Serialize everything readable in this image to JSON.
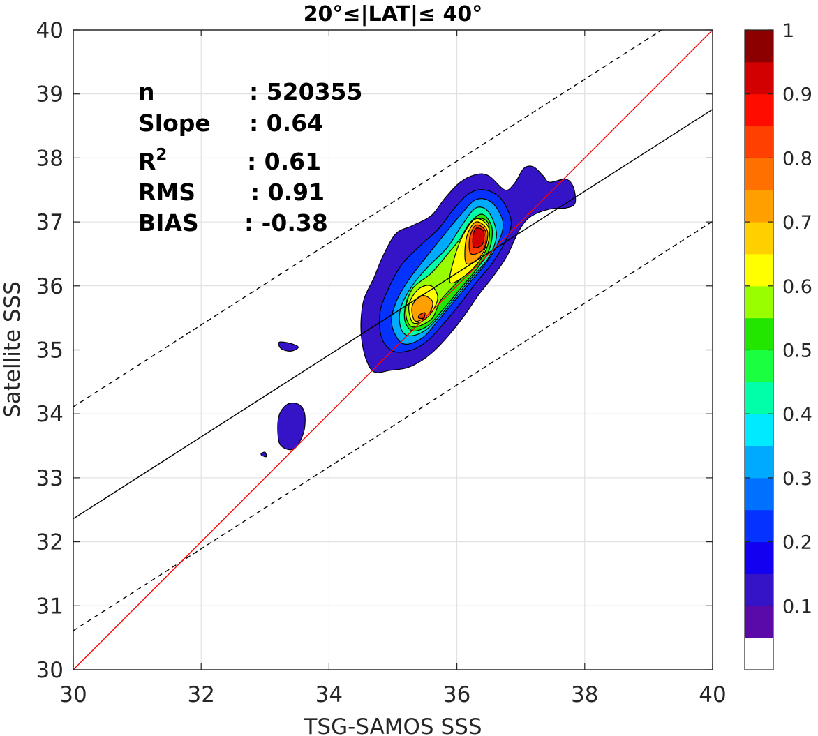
{
  "chart_data": {
    "type": "contour",
    "title": "20°≤|LAT|≤ 40°",
    "xlabel": "TSG-SAMOS SSS",
    "ylabel": "Satellite SSS",
    "xlim": [
      30,
      40
    ],
    "ylim": [
      30,
      40
    ],
    "xticks": [
      "30",
      "32",
      "34",
      "36",
      "38",
      "40"
    ],
    "yticks": [
      "30",
      "31",
      "32",
      "33",
      "34",
      "35",
      "36",
      "37",
      "38",
      "39",
      "40"
    ],
    "grid": true,
    "stats": [
      {
        "label": "n",
        "value": ": 520355"
      },
      {
        "label": "Slope",
        "value": ": 0.64"
      },
      {
        "label": "R",
        "sup": "2",
        "value": ": 0.61"
      },
      {
        "label": "RMS",
        "value": ": 0.91"
      },
      {
        "label": "BIAS",
        "value": ": -0.38"
      }
    ],
    "lines": {
      "one_to_one": {
        "slope": 1,
        "intercept": 0,
        "color": "#ff0000"
      },
      "regression": {
        "slope": 0.64,
        "intercept": 13.16,
        "color": "#000000"
      },
      "upper_bound": {
        "slope": 0.64,
        "intercept": 14.91,
        "color": "#000000",
        "style": "dashed"
      },
      "lower_bound": {
        "slope": 0.64,
        "intercept": 11.41,
        "color": "#000000",
        "style": "dashed"
      }
    },
    "colorbar": {
      "ticks": [
        "0.1",
        "0.2",
        "0.3",
        "0.4",
        "0.5",
        "0.6",
        "0.7",
        "0.8",
        "0.9",
        "1"
      ],
      "colors": [
        "#ffffff",
        "#5a0aa8",
        "#3514c8",
        "#1400f0",
        "#0532ff",
        "#0070ff",
        "#00aaff",
        "#00eaff",
        "#00ffa8",
        "#1aff40",
        "#22e600",
        "#99ff00",
        "#ffff00",
        "#ffd000",
        "#ffa000",
        "#ff7000",
        "#ff4000",
        "#ff0c00",
        "#d20000",
        "#8c0000"
      ]
    },
    "contours": [
      {
        "level": 0.05,
        "color": "#3514c8",
        "points": [
          [
            34.72,
            34.65
          ],
          [
            34.96,
            34.68
          ],
          [
            35.22,
            34.72
          ],
          [
            35.46,
            34.84
          ],
          [
            35.68,
            35.02
          ],
          [
            35.9,
            35.26
          ],
          [
            36.12,
            35.54
          ],
          [
            36.34,
            35.86
          ],
          [
            36.56,
            36.14
          ],
          [
            36.78,
            36.46
          ],
          [
            36.97,
            36.86
          ],
          [
            37.15,
            37.08
          ],
          [
            37.45,
            37.2
          ],
          [
            37.72,
            37.22
          ],
          [
            37.85,
            37.3
          ],
          [
            37.82,
            37.55
          ],
          [
            37.7,
            37.67
          ],
          [
            37.45,
            37.62
          ],
          [
            37.35,
            37.72
          ],
          [
            37.2,
            37.86
          ],
          [
            37.05,
            37.84
          ],
          [
            36.9,
            37.6
          ],
          [
            36.75,
            37.5
          ],
          [
            36.5,
            37.72
          ],
          [
            36.3,
            37.74
          ],
          [
            36.05,
            37.62
          ],
          [
            35.82,
            37.38
          ],
          [
            35.6,
            37.1
          ],
          [
            35.3,
            36.94
          ],
          [
            35.05,
            36.82
          ],
          [
            34.85,
            36.48
          ],
          [
            34.7,
            36.12
          ],
          [
            34.55,
            35.8
          ],
          [
            34.5,
            35.45
          ],
          [
            34.52,
            35.1
          ],
          [
            34.6,
            34.8
          ]
        ]
      },
      {
        "level": 0.15,
        "color": "#0532ff",
        "points": [
          [
            35.0,
            34.98
          ],
          [
            35.3,
            35.0
          ],
          [
            35.55,
            35.15
          ],
          [
            35.8,
            35.42
          ],
          [
            36.05,
            35.72
          ],
          [
            36.3,
            36.05
          ],
          [
            36.55,
            36.35
          ],
          [
            36.75,
            36.68
          ],
          [
            36.85,
            37.0
          ],
          [
            36.7,
            37.35
          ],
          [
            36.45,
            37.5
          ],
          [
            36.2,
            37.45
          ],
          [
            35.95,
            37.2
          ],
          [
            35.72,
            36.9
          ],
          [
            35.45,
            36.65
          ],
          [
            35.15,
            36.35
          ],
          [
            34.95,
            36.0
          ],
          [
            34.8,
            35.6
          ],
          [
            34.82,
            35.2
          ]
        ]
      },
      {
        "level": 0.25,
        "color": "#00aaff",
        "points": [
          [
            35.15,
            35.1
          ],
          [
            35.45,
            35.18
          ],
          [
            35.7,
            35.45
          ],
          [
            35.95,
            35.75
          ],
          [
            36.2,
            36.05
          ],
          [
            36.45,
            36.35
          ],
          [
            36.65,
            36.68
          ],
          [
            36.72,
            37.0
          ],
          [
            36.55,
            37.3
          ],
          [
            36.3,
            37.35
          ],
          [
            36.05,
            37.1
          ],
          [
            35.8,
            36.8
          ],
          [
            35.52,
            36.45
          ],
          [
            35.25,
            36.1
          ],
          [
            35.05,
            35.75
          ],
          [
            34.98,
            35.4
          ]
        ]
      },
      {
        "level": 0.35,
        "color": "#00ffa8",
        "points": [
          [
            35.25,
            35.22
          ],
          [
            35.5,
            35.3
          ],
          [
            35.75,
            35.55
          ],
          [
            36.0,
            35.85
          ],
          [
            36.25,
            36.15
          ],
          [
            36.5,
            36.45
          ],
          [
            36.62,
            36.8
          ],
          [
            36.5,
            37.15
          ],
          [
            36.3,
            37.22
          ],
          [
            36.08,
            36.95
          ],
          [
            35.85,
            36.6
          ],
          [
            35.55,
            36.3
          ],
          [
            35.3,
            36.0
          ],
          [
            35.12,
            35.65
          ],
          [
            35.12,
            35.35
          ]
        ]
      },
      {
        "level": 0.45,
        "color": "#22e600",
        "points": [
          [
            35.3,
            35.3
          ],
          [
            35.55,
            35.38
          ],
          [
            35.8,
            35.65
          ],
          [
            36.05,
            35.95
          ],
          [
            36.3,
            36.25
          ],
          [
            36.5,
            36.55
          ],
          [
            36.55,
            36.9
          ],
          [
            36.4,
            37.12
          ],
          [
            36.2,
            36.98
          ],
          [
            36.0,
            36.65
          ],
          [
            35.75,
            36.35
          ],
          [
            35.5,
            36.1
          ],
          [
            35.25,
            35.85
          ],
          [
            35.18,
            35.5
          ]
        ]
      },
      {
        "level": 0.55,
        "color": "#99ff00",
        "points": [
          [
            35.3,
            35.36
          ],
          [
            35.6,
            35.48
          ],
          [
            35.75,
            35.78
          ],
          [
            36.0,
            36.05
          ],
          [
            36.25,
            36.3
          ],
          [
            36.45,
            36.6
          ],
          [
            36.5,
            36.95
          ],
          [
            36.35,
            37.05
          ],
          [
            36.15,
            36.85
          ],
          [
            35.9,
            36.55
          ],
          [
            35.6,
            36.2
          ],
          [
            35.3,
            35.95
          ],
          [
            35.2,
            35.6
          ]
        ]
      },
      {
        "level": 0.65,
        "color": "#ffff00",
        "points": [
          [
            35.32,
            35.42
          ],
          [
            35.55,
            35.52
          ],
          [
            35.7,
            35.8
          ],
          [
            35.6,
            36.0
          ],
          [
            35.4,
            35.95
          ],
          [
            35.25,
            35.7
          ]
        ]
      },
      {
        "level": 0.65,
        "color": "#ffff00",
        "points": [
          [
            35.9,
            36.05
          ],
          [
            36.2,
            36.22
          ],
          [
            36.45,
            36.55
          ],
          [
            36.5,
            36.9
          ],
          [
            36.3,
            37.05
          ],
          [
            36.1,
            36.8
          ],
          [
            35.95,
            36.4
          ]
        ]
      },
      {
        "level": 0.75,
        "color": "#ffa000",
        "points": [
          [
            35.35,
            35.45
          ],
          [
            35.55,
            35.55
          ],
          [
            35.62,
            35.75
          ],
          [
            35.45,
            35.85
          ],
          [
            35.3,
            35.68
          ]
        ]
      },
      {
        "level": 0.75,
        "color": "#ffa000",
        "points": [
          [
            36.15,
            36.35
          ],
          [
            36.4,
            36.5
          ],
          [
            36.48,
            36.85
          ],
          [
            36.3,
            37.0
          ],
          [
            36.15,
            36.75
          ]
        ]
      },
      {
        "level": 0.85,
        "color": "#ff4000",
        "points": [
          [
            36.22,
            36.5
          ],
          [
            36.42,
            36.58
          ],
          [
            36.45,
            36.85
          ],
          [
            36.3,
            36.95
          ],
          [
            36.2,
            36.75
          ]
        ]
      },
      {
        "level": 0.95,
        "color": "#d20000",
        "points": [
          [
            36.27,
            36.6
          ],
          [
            36.4,
            36.65
          ],
          [
            36.42,
            36.85
          ],
          [
            36.3,
            36.9
          ],
          [
            36.25,
            36.75
          ]
        ]
      },
      {
        "level": 0.85,
        "color": "#ff4000",
        "points": [
          [
            35.42,
            35.55
          ],
          [
            35.5,
            35.58
          ],
          [
            35.48,
            35.5
          ],
          [
            35.4,
            35.5
          ]
        ]
      },
      {
        "level": 0.05,
        "color": "#3514c8",
        "points": [
          [
            33.22,
            35.12
          ],
          [
            33.4,
            35.1
          ],
          [
            33.52,
            35.04
          ],
          [
            33.4,
            34.98
          ],
          [
            33.25,
            35.02
          ]
        ]
      },
      {
        "level": 0.05,
        "color": "#3514c8",
        "points": [
          [
            33.25,
            33.5
          ],
          [
            33.45,
            33.45
          ],
          [
            33.6,
            33.7
          ],
          [
            33.62,
            34.0
          ],
          [
            33.52,
            34.15
          ],
          [
            33.35,
            34.15
          ],
          [
            33.22,
            33.98
          ],
          [
            33.2,
            33.7
          ]
        ]
      },
      {
        "level": 0.05,
        "color": "#3514c8",
        "points": [
          [
            32.95,
            33.35
          ],
          [
            33.02,
            33.33
          ],
          [
            33.0,
            33.4
          ],
          [
            32.94,
            33.38
          ]
        ]
      }
    ]
  }
}
